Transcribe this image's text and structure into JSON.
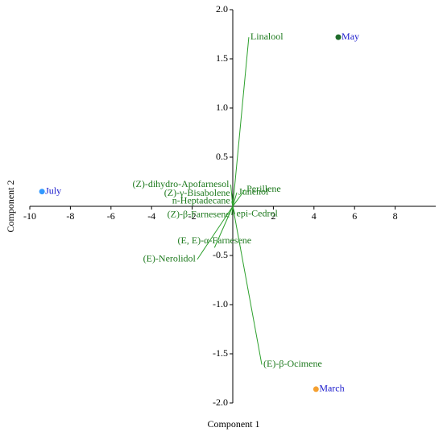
{
  "chart_data": {
    "type": "biplot",
    "xlabel": "Component 1",
    "ylabel": "Component 2",
    "xlim": [
      -10,
      10
    ],
    "ylim": [
      -2,
      2
    ],
    "xticks": [
      -10,
      -8,
      -6,
      -4,
      -2,
      2,
      4,
      6,
      8
    ],
    "yticks": [
      {
        "value": 2,
        "label": "2.0"
      },
      1.5,
      {
        "value": 1,
        "label": "1.0"
      },
      0.5,
      -0.5,
      {
        "value": -1,
        "label": "-1.0"
      },
      -1.5,
      {
        "value": -2,
        "label": "-2.0"
      }
    ],
    "points": [
      {
        "name": "May",
        "x": 5.2,
        "y": 1.72,
        "color": "#1e6b2a"
      },
      {
        "name": "July",
        "x": -9.4,
        "y": 0.15,
        "color": "#3399ff"
      },
      {
        "name": "March",
        "x": 4.1,
        "y": -1.86,
        "color": "#f5a030"
      }
    ],
    "loading_color": "#2ca02c",
    "loadings": [
      {
        "name": "Linalool",
        "x": 0.79,
        "y": 1.72
      },
      {
        "name": "Junenol",
        "x": 0.2,
        "y": 0.14
      },
      {
        "name": "Perillene",
        "x": 0.6,
        "y": 0.17
      },
      {
        "name": "(Z)-dihydro-Apofarnesol",
        "x": -0.1,
        "y": 0.22
      },
      {
        "name": "(Z)-γ-Bisabolene",
        "x": -0.05,
        "y": 0.13
      },
      {
        "name": "n-Heptadecane",
        "x": -0.05,
        "y": 0.05
      },
      {
        "name": "(Z)-β-Farnesene",
        "x": -0.05,
        "y": -0.09
      },
      {
        "name": "epi-Cedrol",
        "x": 0.1,
        "y": -0.08
      },
      {
        "name": "(E)-Nerolidol",
        "x": -1.75,
        "y": -0.54
      },
      {
        "name": "(E, E)-α-Farnesene",
        "x": -0.9,
        "y": -0.42
      },
      {
        "name": "(E)-β-Ocimene",
        "x": 1.43,
        "y": -1.61
      }
    ]
  }
}
